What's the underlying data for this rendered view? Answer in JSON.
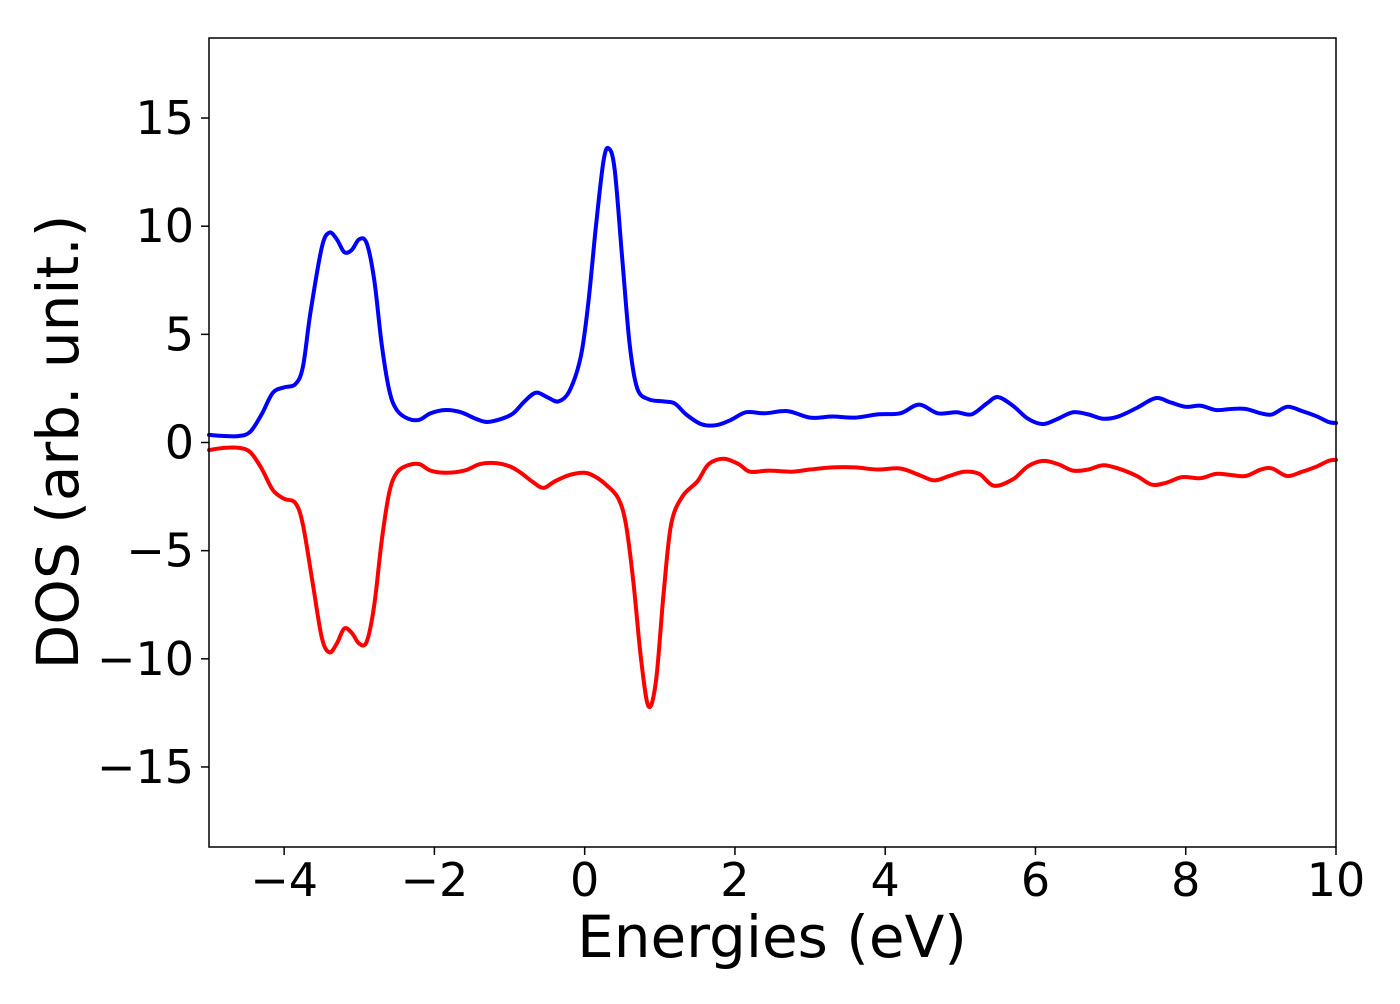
{
  "chart_data": {
    "type": "line",
    "xlabel": "Energies (eV)",
    "ylabel": "DOS (arb. unit.)",
    "xlim": [
      -5,
      10
    ],
    "ylim": [
      -18.7,
      18.7
    ],
    "grid": false,
    "xticks": [
      {
        "value": -4,
        "label": "−4"
      },
      {
        "value": -2,
        "label": "−2"
      },
      {
        "value": 0,
        "label": "0"
      },
      {
        "value": 2,
        "label": "2"
      },
      {
        "value": 4,
        "label": "4"
      },
      {
        "value": 6,
        "label": "6"
      },
      {
        "value": 8,
        "label": "8"
      },
      {
        "value": 10,
        "label": "10"
      }
    ],
    "yticks": [
      {
        "value": 15,
        "label": "15"
      },
      {
        "value": 10,
        "label": "10"
      },
      {
        "value": 5,
        "label": "5"
      },
      {
        "value": 0,
        "label": "0"
      },
      {
        "value": -5,
        "label": "−5"
      },
      {
        "value": -10,
        "label": "−10"
      },
      {
        "value": -15,
        "label": "−15"
      }
    ],
    "series": [
      {
        "color": "#0000ff",
        "points": [
          [
            -5.0,
            0.35
          ],
          [
            -4.8,
            0.3
          ],
          [
            -4.6,
            0.3
          ],
          [
            -4.45,
            0.5
          ],
          [
            -4.3,
            1.3
          ],
          [
            -4.15,
            2.3
          ],
          [
            -4.0,
            2.55
          ],
          [
            -3.85,
            2.7
          ],
          [
            -3.75,
            3.5
          ],
          [
            -3.65,
            6.0
          ],
          [
            -3.5,
            9.0
          ],
          [
            -3.4,
            9.7
          ],
          [
            -3.3,
            9.4
          ],
          [
            -3.2,
            8.8
          ],
          [
            -3.1,
            8.9
          ],
          [
            -3.0,
            9.4
          ],
          [
            -2.9,
            9.2
          ],
          [
            -2.8,
            7.5
          ],
          [
            -2.7,
            4.5
          ],
          [
            -2.6,
            2.4
          ],
          [
            -2.5,
            1.5
          ],
          [
            -2.35,
            1.1
          ],
          [
            -2.2,
            1.05
          ],
          [
            -2.05,
            1.35
          ],
          [
            -1.85,
            1.5
          ],
          [
            -1.65,
            1.4
          ],
          [
            -1.45,
            1.1
          ],
          [
            -1.3,
            0.95
          ],
          [
            -1.1,
            1.1
          ],
          [
            -0.95,
            1.35
          ],
          [
            -0.8,
            1.9
          ],
          [
            -0.65,
            2.3
          ],
          [
            -0.5,
            2.1
          ],
          [
            -0.35,
            1.9
          ],
          [
            -0.2,
            2.4
          ],
          [
            -0.05,
            4.0
          ],
          [
            0.05,
            6.5
          ],
          [
            0.15,
            10.0
          ],
          [
            0.25,
            13.0
          ],
          [
            0.32,
            13.6
          ],
          [
            0.4,
            12.6
          ],
          [
            0.5,
            8.5
          ],
          [
            0.6,
            4.5
          ],
          [
            0.7,
            2.5
          ],
          [
            0.85,
            2.0
          ],
          [
            1.05,
            1.9
          ],
          [
            1.2,
            1.8
          ],
          [
            1.35,
            1.3
          ],
          [
            1.55,
            0.85
          ],
          [
            1.75,
            0.8
          ],
          [
            1.95,
            1.05
          ],
          [
            2.15,
            1.4
          ],
          [
            2.4,
            1.35
          ],
          [
            2.7,
            1.45
          ],
          [
            3.0,
            1.15
          ],
          [
            3.3,
            1.2
          ],
          [
            3.6,
            1.15
          ],
          [
            3.9,
            1.3
          ],
          [
            4.2,
            1.35
          ],
          [
            4.45,
            1.75
          ],
          [
            4.7,
            1.35
          ],
          [
            4.95,
            1.4
          ],
          [
            5.15,
            1.3
          ],
          [
            5.35,
            1.8
          ],
          [
            5.5,
            2.1
          ],
          [
            5.7,
            1.7
          ],
          [
            5.9,
            1.1
          ],
          [
            6.1,
            0.85
          ],
          [
            6.3,
            1.1
          ],
          [
            6.5,
            1.4
          ],
          [
            6.7,
            1.3
          ],
          [
            6.9,
            1.1
          ],
          [
            7.1,
            1.2
          ],
          [
            7.35,
            1.6
          ],
          [
            7.6,
            2.05
          ],
          [
            7.8,
            1.85
          ],
          [
            8.0,
            1.65
          ],
          [
            8.2,
            1.7
          ],
          [
            8.4,
            1.5
          ],
          [
            8.6,
            1.55
          ],
          [
            8.8,
            1.55
          ],
          [
            9.0,
            1.35
          ],
          [
            9.15,
            1.3
          ],
          [
            9.35,
            1.65
          ],
          [
            9.55,
            1.45
          ],
          [
            9.75,
            1.2
          ],
          [
            9.9,
            0.95
          ],
          [
            10.0,
            0.9
          ]
        ]
      },
      {
        "color": "#ff0000",
        "points": [
          [
            -5.0,
            -0.35
          ],
          [
            -4.8,
            -0.25
          ],
          [
            -4.6,
            -0.25
          ],
          [
            -4.45,
            -0.45
          ],
          [
            -4.3,
            -1.2
          ],
          [
            -4.15,
            -2.2
          ],
          [
            -4.0,
            -2.6
          ],
          [
            -3.85,
            -2.8
          ],
          [
            -3.75,
            -3.8
          ],
          [
            -3.62,
            -6.5
          ],
          [
            -3.5,
            -9.0
          ],
          [
            -3.4,
            -9.7
          ],
          [
            -3.3,
            -9.3
          ],
          [
            -3.2,
            -8.6
          ],
          [
            -3.1,
            -8.8
          ],
          [
            -3.0,
            -9.3
          ],
          [
            -2.9,
            -9.2
          ],
          [
            -2.8,
            -7.5
          ],
          [
            -2.7,
            -4.5
          ],
          [
            -2.6,
            -2.3
          ],
          [
            -2.5,
            -1.4
          ],
          [
            -2.35,
            -1.05
          ],
          [
            -2.2,
            -1.0
          ],
          [
            -2.05,
            -1.3
          ],
          [
            -1.85,
            -1.4
          ],
          [
            -1.6,
            -1.3
          ],
          [
            -1.4,
            -1.0
          ],
          [
            -1.2,
            -0.95
          ],
          [
            -1.0,
            -1.1
          ],
          [
            -0.85,
            -1.4
          ],
          [
            -0.7,
            -1.8
          ],
          [
            -0.55,
            -2.1
          ],
          [
            -0.4,
            -1.8
          ],
          [
            -0.2,
            -1.5
          ],
          [
            0.0,
            -1.4
          ],
          [
            0.15,
            -1.6
          ],
          [
            0.3,
            -2.0
          ],
          [
            0.45,
            -2.6
          ],
          [
            0.55,
            -3.8
          ],
          [
            0.65,
            -6.5
          ],
          [
            0.75,
            -10.0
          ],
          [
            0.85,
            -12.2
          ],
          [
            0.95,
            -11.0
          ],
          [
            1.05,
            -7.0
          ],
          [
            1.15,
            -3.8
          ],
          [
            1.3,
            -2.5
          ],
          [
            1.5,
            -1.8
          ],
          [
            1.65,
            -1.0
          ],
          [
            1.85,
            -0.75
          ],
          [
            2.05,
            -1.0
          ],
          [
            2.2,
            -1.35
          ],
          [
            2.45,
            -1.3
          ],
          [
            2.75,
            -1.35
          ],
          [
            3.0,
            -1.25
          ],
          [
            3.3,
            -1.15
          ],
          [
            3.6,
            -1.15
          ],
          [
            3.9,
            -1.25
          ],
          [
            4.2,
            -1.2
          ],
          [
            4.45,
            -1.5
          ],
          [
            4.65,
            -1.75
          ],
          [
            4.85,
            -1.55
          ],
          [
            5.05,
            -1.35
          ],
          [
            5.25,
            -1.45
          ],
          [
            5.45,
            -2.0
          ],
          [
            5.7,
            -1.7
          ],
          [
            5.9,
            -1.1
          ],
          [
            6.1,
            -0.85
          ],
          [
            6.3,
            -1.0
          ],
          [
            6.5,
            -1.3
          ],
          [
            6.7,
            -1.25
          ],
          [
            6.9,
            -1.05
          ],
          [
            7.1,
            -1.2
          ],
          [
            7.35,
            -1.55
          ],
          [
            7.55,
            -1.95
          ],
          [
            7.75,
            -1.85
          ],
          [
            7.95,
            -1.6
          ],
          [
            8.2,
            -1.65
          ],
          [
            8.4,
            -1.45
          ],
          [
            8.6,
            -1.5
          ],
          [
            8.8,
            -1.55
          ],
          [
            9.0,
            -1.25
          ],
          [
            9.15,
            -1.2
          ],
          [
            9.35,
            -1.55
          ],
          [
            9.55,
            -1.35
          ],
          [
            9.75,
            -1.1
          ],
          [
            9.9,
            -0.85
          ],
          [
            10.0,
            -0.8
          ]
        ]
      }
    ]
  }
}
